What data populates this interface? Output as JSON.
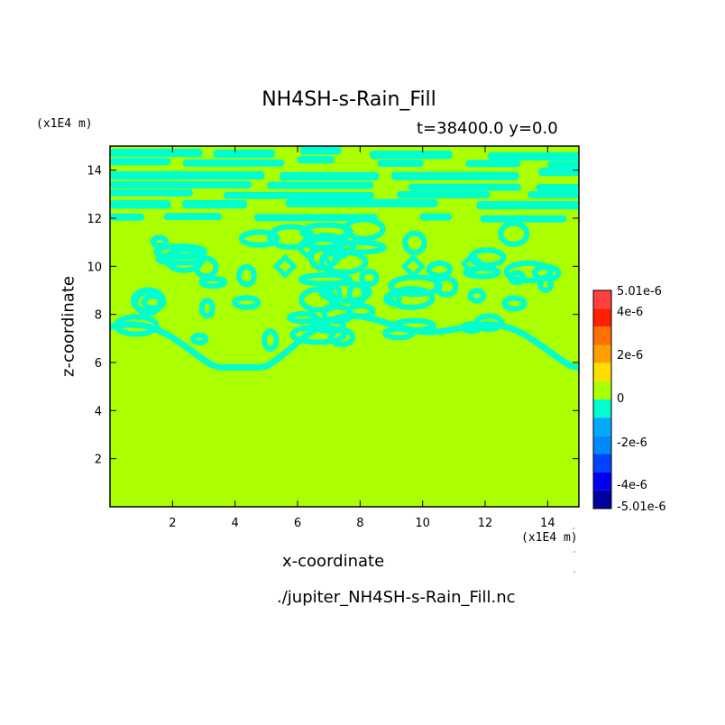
{
  "chart_data": {
    "type": "heatmap",
    "title": "NH4SH-s-Rain_Fill",
    "subtitle": "t=38400.0 y=0.0",
    "xlabel": "x-coordinate",
    "ylabel": "z-coordinate",
    "x_unit": "(x1E4 m)",
    "y_unit": "(x1E4 m)",
    "xlim": [
      0,
      15
    ],
    "ylim": [
      0,
      15
    ],
    "x_ticks": [
      2,
      4,
      6,
      8,
      10,
      12,
      14
    ],
    "y_ticks": [
      2,
      4,
      6,
      8,
      10,
      12,
      14
    ],
    "grid": false,
    "background_value": 0,
    "background_color": "#aaff00",
    "anomaly_color": "#00ffcc",
    "anomaly_value_range": [
      -1e-06,
      0
    ],
    "anomaly_regions": [
      {
        "z_range": [
          6,
          8.5
        ],
        "description": "cyan contour loops, lower anomaly band"
      },
      {
        "z_range": [
          8.5,
          11
        ],
        "description": "cyan patches, middle band"
      },
      {
        "z_range": [
          11,
          15
        ],
        "description": "dense cyan bands, upper band"
      }
    ],
    "colorbar": {
      "levels": [
        {
          "label": "5.01e-6",
          "color": "#ff4040"
        },
        {
          "label": "4e-6",
          "color": "#ff2000"
        },
        {
          "label": "",
          "color": "#ff7000"
        },
        {
          "label": "2e-6",
          "color": "#ffa000"
        },
        {
          "label": "",
          "color": "#ffdd00"
        },
        {
          "label": "0",
          "color": "#aaff00"
        },
        {
          "label": "",
          "color": "#00ffcc"
        },
        {
          "label": "-2e-6",
          "color": "#00aaff"
        },
        {
          "label": "",
          "color": "#0088ff"
        },
        {
          "label": "-4e-6",
          "color": "#0044ff"
        },
        {
          "label": "",
          "color": "#0000ee"
        },
        {
          "label": "-5.01e-6",
          "color": "#0000a0"
        }
      ]
    },
    "source_file": "./jupiter_NH4SH-s-Rain_Fill.nc"
  }
}
